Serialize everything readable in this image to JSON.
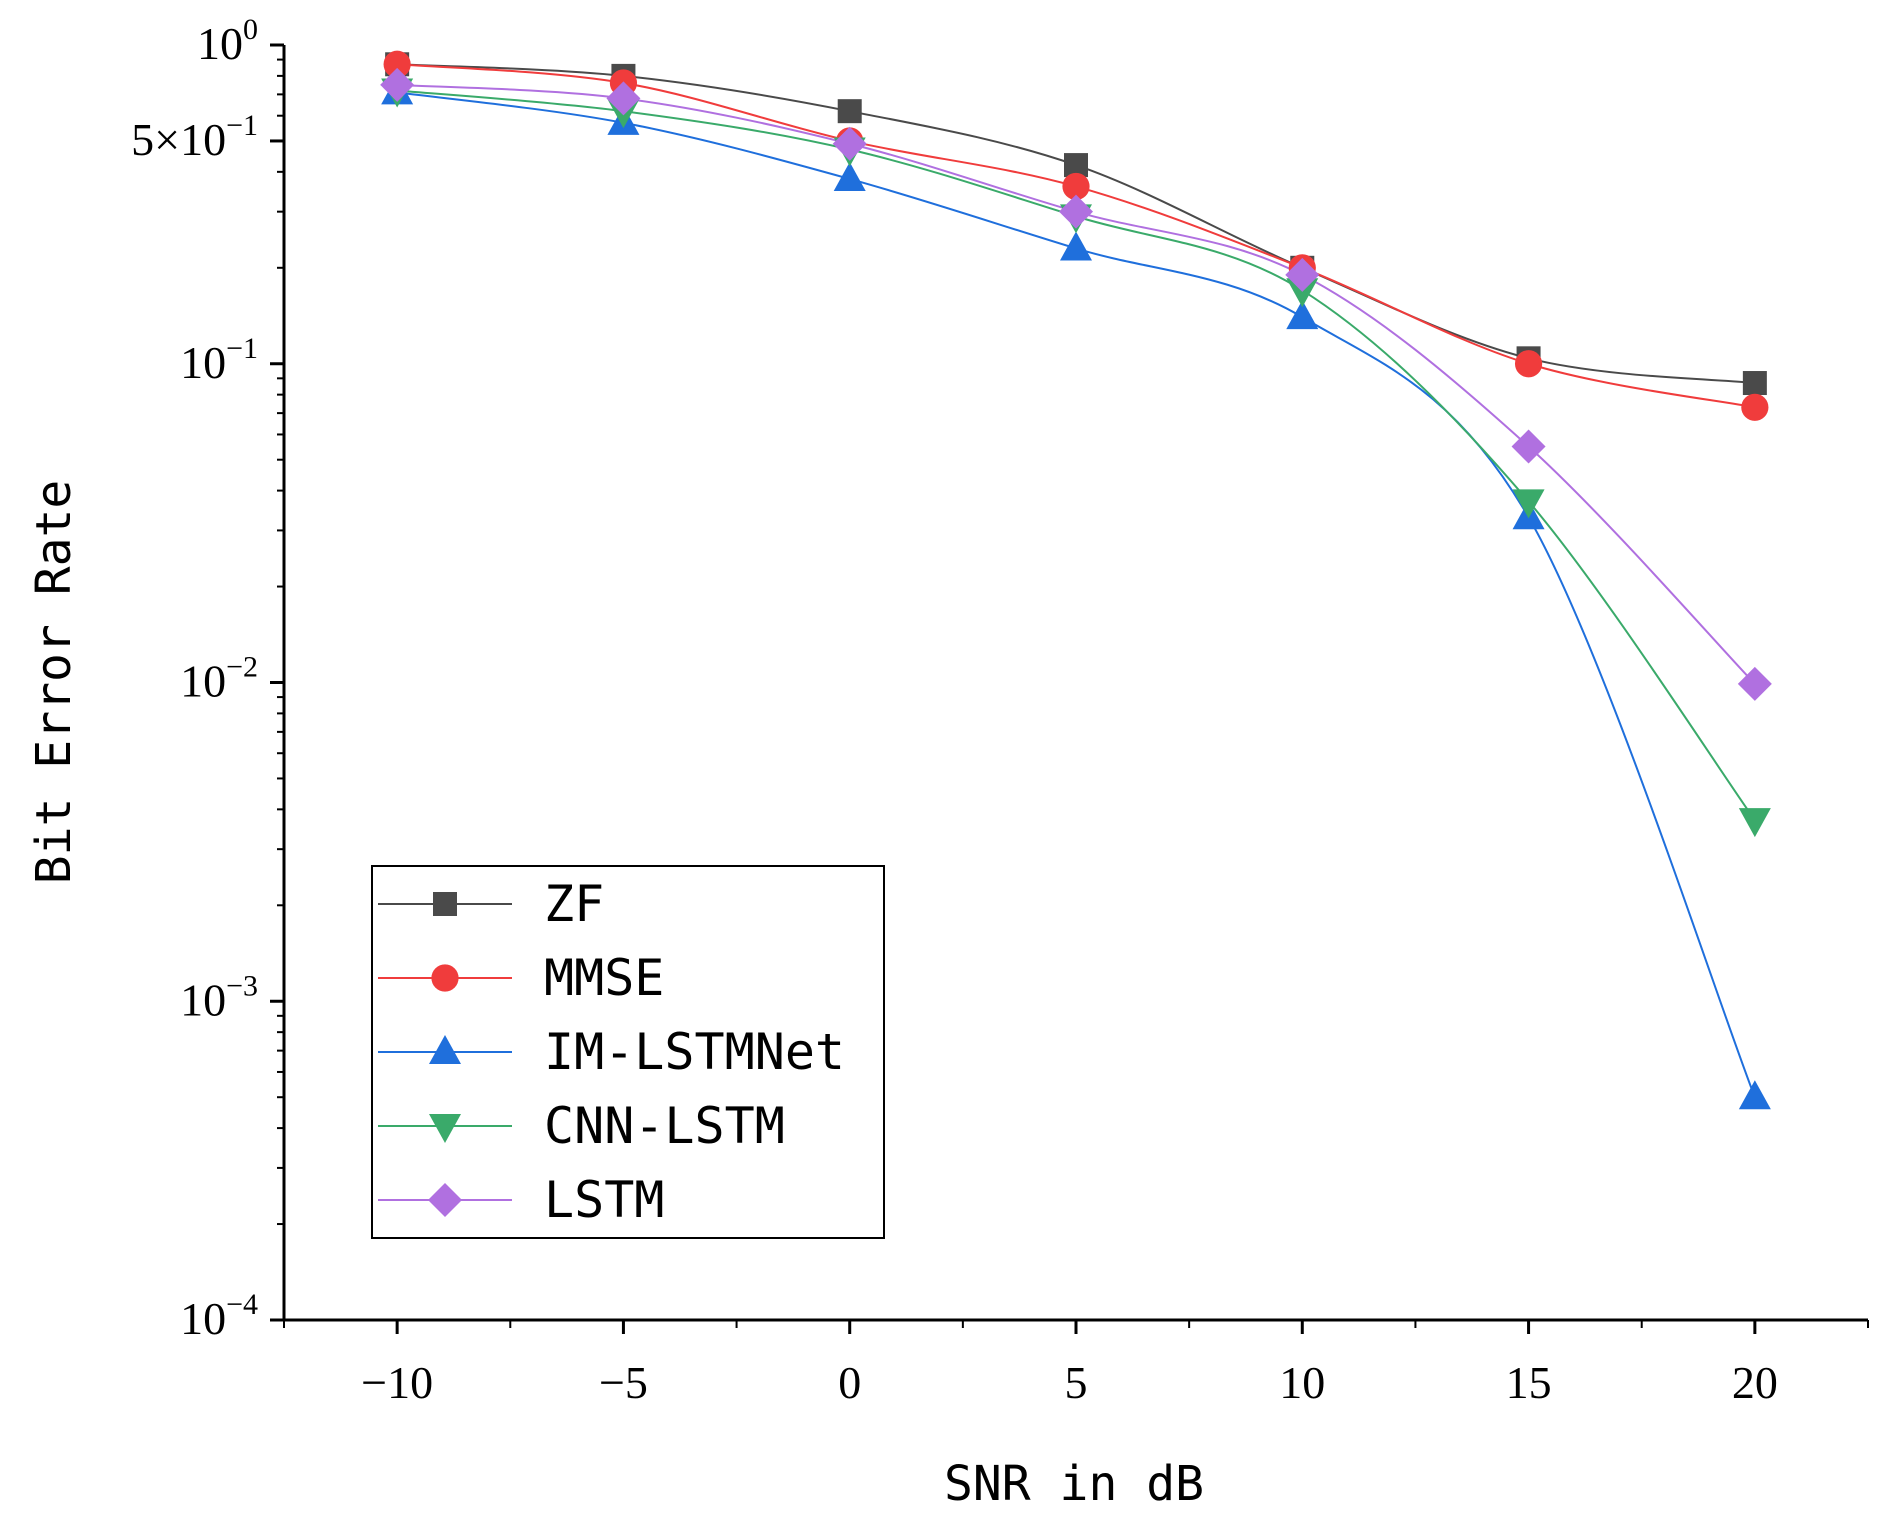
{
  "chart_data": {
    "type": "line",
    "xlabel": "SNR in dB",
    "ylabel": "Bit Error Rate",
    "x": [
      -10,
      -5,
      0,
      5,
      10,
      15,
      20
    ],
    "xlim": [
      -12.5,
      22.5
    ],
    "ylim": [
      0.0001,
      1
    ],
    "yscale": "log",
    "x_ticks": [
      {
        "value": -10,
        "label": "−10"
      },
      {
        "value": -5,
        "label": "−5"
      },
      {
        "value": 0,
        "label": "0"
      },
      {
        "value": 5,
        "label": "5"
      },
      {
        "value": 10,
        "label": "10"
      },
      {
        "value": 15,
        "label": "15"
      },
      {
        "value": 20,
        "label": "20"
      }
    ],
    "y_ticks": [
      {
        "value": 1,
        "base": "10",
        "exp": "0"
      },
      {
        "value": 0.5,
        "base": "5×10",
        "exp": "−1"
      },
      {
        "value": 0.1,
        "base": "10",
        "exp": "−1"
      },
      {
        "value": 0.01,
        "base": "10",
        "exp": "−2"
      },
      {
        "value": 0.001,
        "base": "10",
        "exp": "−3"
      },
      {
        "value": 0.0001,
        "base": "10",
        "exp": "−4"
      }
    ],
    "grid": false,
    "legend_position": "bottom-left",
    "series": [
      {
        "name": "ZF",
        "color": "#4a4a4a",
        "marker": "square",
        "values": [
          0.87,
          0.8,
          0.62,
          0.42,
          0.2,
          0.104,
          0.087
        ]
      },
      {
        "name": "MMSE",
        "color": "#f03c3c",
        "marker": "circle",
        "values": [
          0.87,
          0.76,
          0.5,
          0.36,
          0.2,
          0.1,
          0.073
        ]
      },
      {
        "name": "IM-LSTMNet",
        "color": "#1f6fdc",
        "marker": "triangle-up",
        "values": [
          0.71,
          0.57,
          0.38,
          0.23,
          0.14,
          0.033,
          0.0005
        ]
      },
      {
        "name": "CNN-LSTM",
        "color": "#3aaa6a",
        "marker": "triangle-down",
        "values": [
          0.72,
          0.62,
          0.47,
          0.29,
          0.17,
          0.037,
          0.0037
        ]
      },
      {
        "name": "LSTM",
        "color": "#b070e0",
        "marker": "diamond",
        "values": [
          0.75,
          0.68,
          0.49,
          0.3,
          0.19,
          0.055,
          0.0099
        ]
      }
    ]
  }
}
